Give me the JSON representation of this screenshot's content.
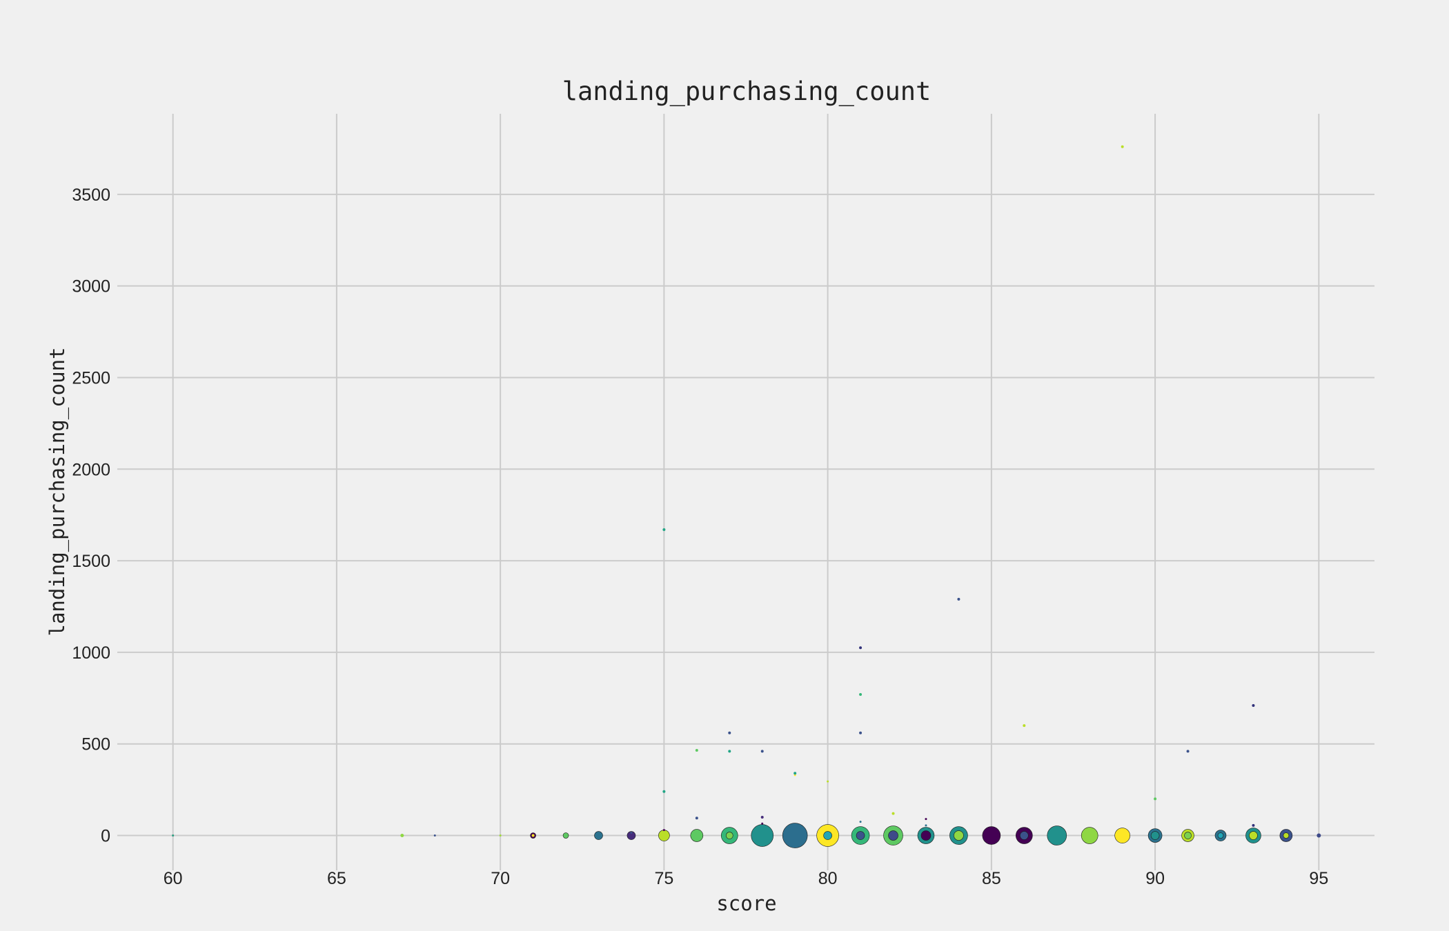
{
  "chart_data": {
    "type": "scatter",
    "title": "landing_purchasing_count",
    "xlabel": "score",
    "ylabel": "landing_purchasing_count",
    "xlim": [
      58.3,
      96.7
    ],
    "ylim": [
      -190,
      3940
    ],
    "xticks": [
      60,
      65,
      70,
      75,
      80,
      85,
      90,
      95
    ],
    "yticks": [
      0,
      500,
      1000,
      1500,
      2000,
      2500,
      3000,
      3500
    ],
    "grid": true,
    "legend": "none",
    "points": [
      {
        "x": 60,
        "y": 0,
        "r": 1.5,
        "color": "#2a9d7f"
      },
      {
        "x": 67,
        "y": 0,
        "r": 2.5,
        "color": "#8fd744"
      },
      {
        "x": 68,
        "y": 0,
        "r": 1.5,
        "color": "#3b528b"
      },
      {
        "x": 70,
        "y": 0,
        "r": 1.5,
        "color": "#a0da39"
      },
      {
        "x": 71,
        "y": 0,
        "r": 4,
        "color": "#440154"
      },
      {
        "x": 71,
        "y": 0,
        "r": 2,
        "color": "#fde725"
      },
      {
        "x": 72,
        "y": 0,
        "r": 4,
        "color": "#5ec962"
      },
      {
        "x": 73,
        "y": 0,
        "r": 6,
        "color": "#2c728e"
      },
      {
        "x": 74,
        "y": 0,
        "r": 6,
        "color": "#472d7b"
      },
      {
        "x": 74,
        "y": 15,
        "r": 1.5,
        "color": "#3b528b"
      },
      {
        "x": 75,
        "y": 0,
        "r": 8,
        "color": "#bade28"
      },
      {
        "x": 75,
        "y": 30,
        "r": 1.5,
        "color": "#440154"
      },
      {
        "x": 75,
        "y": 240,
        "r": 2,
        "color": "#21a585"
      },
      {
        "x": 75,
        "y": 1670,
        "r": 2,
        "color": "#21a585"
      },
      {
        "x": 76,
        "y": 0,
        "r": 9,
        "color": "#5ec962"
      },
      {
        "x": 76,
        "y": 95,
        "r": 2,
        "color": "#3b528b"
      },
      {
        "x": 76,
        "y": 465,
        "r": 2,
        "color": "#5ec962"
      },
      {
        "x": 77,
        "y": 0,
        "r": 12,
        "color": "#35b779"
      },
      {
        "x": 77,
        "y": 0,
        "r": 5,
        "color": "#7ad151"
      },
      {
        "x": 77,
        "y": 460,
        "r": 2,
        "color": "#21a585"
      },
      {
        "x": 77,
        "y": 560,
        "r": 2,
        "color": "#3b528b"
      },
      {
        "x": 78,
        "y": 0,
        "r": 16,
        "color": "#21918c"
      },
      {
        "x": 78,
        "y": 65,
        "r": 1.5,
        "color": "#440154"
      },
      {
        "x": 78,
        "y": 100,
        "r": 2,
        "color": "#472d7b"
      },
      {
        "x": 78,
        "y": 460,
        "r": 2,
        "color": "#3b528b"
      },
      {
        "x": 79,
        "y": 0,
        "r": 18,
        "color": "#2c6e8e"
      },
      {
        "x": 79,
        "y": 330,
        "r": 1.5,
        "color": "#fde725"
      },
      {
        "x": 79,
        "y": 340,
        "r": 2,
        "color": "#21a585"
      },
      {
        "x": 80,
        "y": 0,
        "r": 16,
        "color": "#fde725"
      },
      {
        "x": 80,
        "y": 0,
        "r": 6,
        "color": "#21a5b5"
      },
      {
        "x": 80,
        "y": 295,
        "r": 1.5,
        "color": "#bade28"
      },
      {
        "x": 81,
        "y": 0,
        "r": 13,
        "color": "#35b779"
      },
      {
        "x": 81,
        "y": 0,
        "r": 6,
        "color": "#3b528b"
      },
      {
        "x": 81,
        "y": 75,
        "r": 1.5,
        "color": "#2c728e"
      },
      {
        "x": 81,
        "y": 560,
        "r": 2,
        "color": "#3b528b"
      },
      {
        "x": 81,
        "y": 770,
        "r": 2,
        "color": "#35b779"
      },
      {
        "x": 81,
        "y": 1025,
        "r": 2,
        "color": "#31317a"
      },
      {
        "x": 82,
        "y": 0,
        "r": 14,
        "color": "#5ec962"
      },
      {
        "x": 82,
        "y": 0,
        "r": 7,
        "color": "#3e4a89"
      },
      {
        "x": 82,
        "y": 120,
        "r": 2,
        "color": "#bade28"
      },
      {
        "x": 83,
        "y": 0,
        "r": 12,
        "color": "#21918c"
      },
      {
        "x": 83,
        "y": 0,
        "r": 7,
        "color": "#440154"
      },
      {
        "x": 83,
        "y": 55,
        "r": 1.5,
        "color": "#2c728e"
      },
      {
        "x": 83,
        "y": 90,
        "r": 1.5,
        "color": "#440154"
      },
      {
        "x": 84,
        "y": 0,
        "r": 13,
        "color": "#21918c"
      },
      {
        "x": 84,
        "y": 0,
        "r": 7,
        "color": "#8fd744"
      },
      {
        "x": 84,
        "y": 1290,
        "r": 2,
        "color": "#3b528b"
      },
      {
        "x": 85,
        "y": 0,
        "r": 13,
        "color": "#440154"
      },
      {
        "x": 86,
        "y": 0,
        "r": 12,
        "color": "#440154"
      },
      {
        "x": 86,
        "y": 0,
        "r": 6,
        "color": "#3b528b"
      },
      {
        "x": 86,
        "y": 600,
        "r": 2,
        "color": "#bade28"
      },
      {
        "x": 87,
        "y": 0,
        "r": 14,
        "color": "#21918c"
      },
      {
        "x": 88,
        "y": 0,
        "r": 12,
        "color": "#8fd744"
      },
      {
        "x": 89,
        "y": 0,
        "r": 11,
        "color": "#fde725"
      },
      {
        "x": 89,
        "y": 3760,
        "r": 2,
        "color": "#bade28"
      },
      {
        "x": 90,
        "y": 0,
        "r": 10,
        "color": "#2c728e"
      },
      {
        "x": 90,
        "y": 0,
        "r": 6,
        "color": "#21918c"
      },
      {
        "x": 90,
        "y": 200,
        "r": 2,
        "color": "#5ec962"
      },
      {
        "x": 91,
        "y": 0,
        "r": 9,
        "color": "#bade28"
      },
      {
        "x": 91,
        "y": 0,
        "r": 5,
        "color": "#7ad151"
      },
      {
        "x": 91,
        "y": 460,
        "r": 2,
        "color": "#3b528b"
      },
      {
        "x": 92,
        "y": 0,
        "r": 8,
        "color": "#2c728e"
      },
      {
        "x": 92,
        "y": 0,
        "r": 4,
        "color": "#21a5b5"
      },
      {
        "x": 93,
        "y": 0,
        "r": 11,
        "color": "#21918c"
      },
      {
        "x": 93,
        "y": 0,
        "r": 6,
        "color": "#bade28"
      },
      {
        "x": 93,
        "y": 55,
        "r": 2,
        "color": "#31317a"
      },
      {
        "x": 93,
        "y": 710,
        "r": 2,
        "color": "#31317a"
      },
      {
        "x": 94,
        "y": 0,
        "r": 9,
        "color": "#3b528b"
      },
      {
        "x": 94,
        "y": 0,
        "r": 4,
        "color": "#bade28"
      },
      {
        "x": 95,
        "y": 0,
        "r": 3,
        "color": "#3e4a89"
      }
    ]
  }
}
